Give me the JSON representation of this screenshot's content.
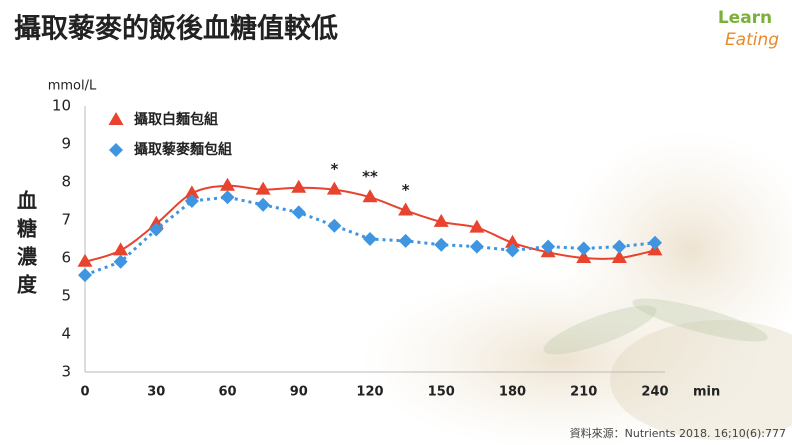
{
  "title": "攝取藜麥的飯後血糖值較低",
  "logo": {
    "line1": "Learn",
    "line2": "Eating"
  },
  "source": "資料來源：Nutrients 2018. 16;10(6):777",
  "chart_data": {
    "type": "line",
    "ylabel": "血糖濃度",
    "yunit": "mmol/L",
    "xunit": "min",
    "x": [
      0,
      15,
      30,
      45,
      60,
      75,
      90,
      105,
      120,
      135,
      150,
      165,
      180,
      195,
      210,
      225,
      240
    ],
    "series": [
      {
        "name": "攝取白麵包組",
        "color": "#e8432e",
        "marker": "triangle",
        "smooth": true,
        "values": [
          5.9,
          6.2,
          6.9,
          7.7,
          7.9,
          7.8,
          7.85,
          7.8,
          7.6,
          7.25,
          6.95,
          6.8,
          6.4,
          6.15,
          6.0,
          6.0,
          6.2
        ]
      },
      {
        "name": "攝取藜麥麵包組",
        "color": "#3f95e0",
        "marker": "diamond",
        "dashed": true,
        "values": [
          5.55,
          5.9,
          6.75,
          7.5,
          7.6,
          7.4,
          7.2,
          6.85,
          6.5,
          6.45,
          6.35,
          6.3,
          6.2,
          6.3,
          6.25,
          6.3,
          6.4
        ]
      }
    ],
    "annotations": [
      {
        "text": "*",
        "x": 105
      },
      {
        "text": "**",
        "x": 120
      },
      {
        "text": "*",
        "x": 135
      }
    ],
    "xlim": [
      0,
      240
    ],
    "xticks": [
      0,
      30,
      60,
      90,
      120,
      150,
      180,
      210,
      240
    ],
    "ylim": [
      3,
      10
    ],
    "yticks": [
      3,
      4,
      5,
      6,
      7,
      8,
      9,
      10
    ],
    "grid": false,
    "legend": "top-left"
  }
}
